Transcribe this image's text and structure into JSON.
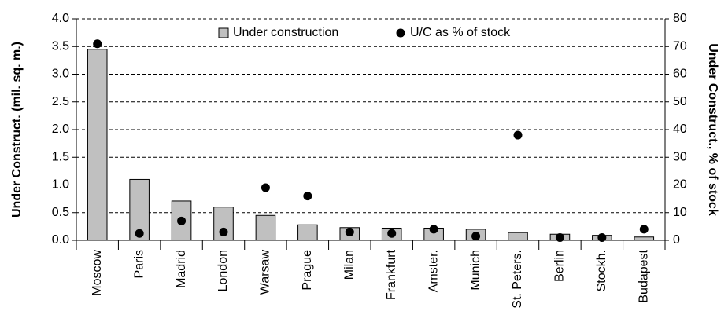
{
  "chart_data": {
    "type": "bar",
    "categories": [
      "Moscow",
      "Paris",
      "Madrid",
      "London",
      "Warsaw",
      "Prague",
      "Milan",
      "Frankfurt",
      "Amster.",
      "Munich",
      "St. Peters.",
      "Berlin",
      "Stockh.",
      "Budapest"
    ],
    "series": [
      {
        "name": "Under construction",
        "type": "bar",
        "color": "#c0c0c0",
        "values": [
          3.45,
          1.1,
          0.71,
          0.6,
          0.45,
          0.28,
          0.23,
          0.22,
          0.22,
          0.2,
          0.14,
          0.11,
          0.09,
          0.06
        ]
      },
      {
        "name": "U/C as % of stock",
        "type": "scatter",
        "axis": "y2",
        "color": "#000000",
        "values": [
          71,
          2.5,
          7,
          3,
          19,
          16,
          3,
          2.5,
          4,
          1.5,
          38,
          1,
          1,
          4
        ]
      }
    ],
    "ylabel": "Under Construct. (mil. sq. m.)",
    "y2label": "Under Construct., % of stock",
    "ylim": [
      0,
      4
    ],
    "yticks": [
      {
        "value": 0,
        "label": "0.0"
      },
      0.5,
      {
        "value": 1,
        "label": "1.0"
      },
      1.5,
      {
        "value": 2,
        "label": "2.0"
      },
      2.5,
      {
        "value": 3,
        "label": "3.0"
      },
      3.5,
      {
        "value": 4,
        "label": "4.0"
      }
    ],
    "y2lim": [
      0,
      80
    ],
    "y2ticks": [
      0,
      10,
      20,
      30,
      40,
      50,
      60,
      70,
      80
    ],
    "grid": true,
    "legend": "top"
  }
}
